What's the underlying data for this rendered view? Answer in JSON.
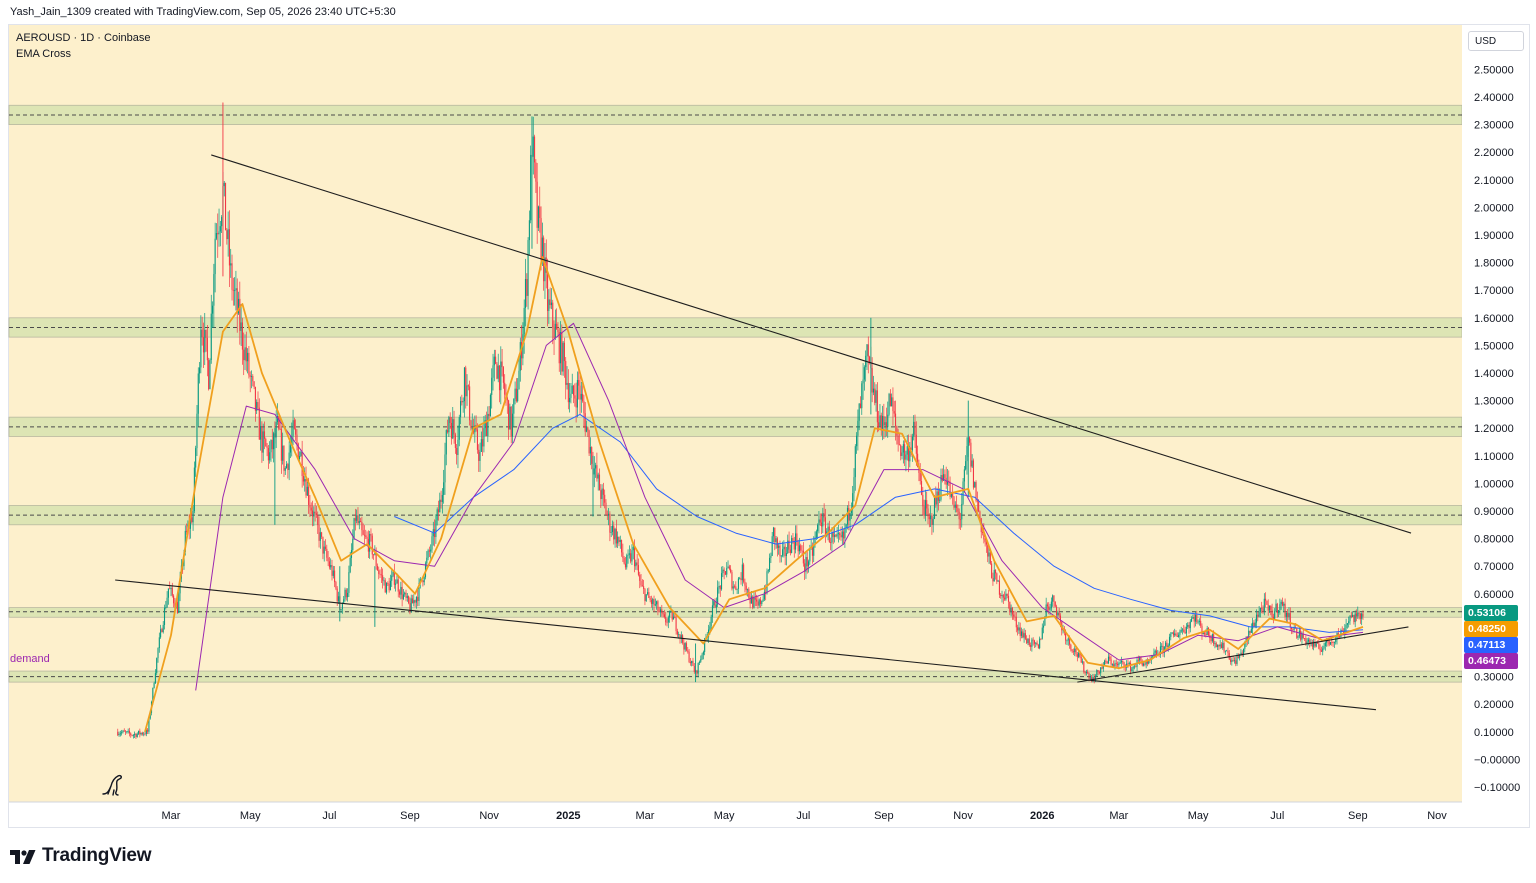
{
  "caption": "Yash_Jain_1309 created with TradingView.com, Sep 05, 2026 23:40 UTC+5:30",
  "symbol_title": "AEROUSD · 1D · Coinbase",
  "indicator": "EMA Cross",
  "currency": "USD",
  "demand_label": "demand",
  "brand": "TradingView",
  "colors": {
    "plot_bg": "#fdf0cc",
    "zone_fill": "#dde5b4",
    "up": "#089981",
    "down": "#f23645",
    "ema_fast": "#f0a01e",
    "ema_mid": "#9c27b0",
    "ema_slow": "#2962ff",
    "trendline": "#1e1e1e"
  },
  "price_tags": [
    {
      "label": "0.53106",
      "value": 0.53106,
      "color": "#089981"
    },
    {
      "label": "0.48250",
      "value": 0.4825,
      "color": "#f59d00"
    },
    {
      "label": "0.47113",
      "value": 0.47113,
      "color": "#2962ff"
    },
    {
      "label": "0.46473",
      "value": 0.46473,
      "color": "#9c27b0"
    }
  ],
  "chart_data": {
    "type": "candlestick",
    "title": "AEROUSD · 1D · Coinbase",
    "x_range": [
      "2024-01-01",
      "2026-11-20"
    ],
    "ylim": [
      -0.13,
      2.56
    ],
    "y_ticks": [
      {
        "label": "2.50000",
        "value": 2.5
      },
      {
        "label": "2.40000",
        "value": 2.4
      },
      {
        "label": "2.30000",
        "value": 2.3
      },
      {
        "label": "2.20000",
        "value": 2.2
      },
      {
        "label": "2.10000",
        "value": 2.1
      },
      {
        "label": "2.00000",
        "value": 2.0
      },
      {
        "label": "1.90000",
        "value": 1.9
      },
      {
        "label": "1.80000",
        "value": 1.8
      },
      {
        "label": "1.70000",
        "value": 1.7
      },
      {
        "label": "1.60000",
        "value": 1.6
      },
      {
        "label": "1.50000",
        "value": 1.5
      },
      {
        "label": "1.40000",
        "value": 1.4
      },
      {
        "label": "1.30000",
        "value": 1.3
      },
      {
        "label": "1.20000",
        "value": 1.2
      },
      {
        "label": "1.10000",
        "value": 1.1
      },
      {
        "label": "1.00000",
        "value": 1.0
      },
      {
        "label": "0.90000",
        "value": 0.9
      },
      {
        "label": "0.80000",
        "value": 0.8
      },
      {
        "label": "0.70000",
        "value": 0.7
      },
      {
        "label": "0.60000",
        "value": 0.6
      },
      {
        "label": "0.30000",
        "value": 0.3
      },
      {
        "label": "0.20000",
        "value": 0.2
      },
      {
        "label": "0.10000",
        "value": 0.1
      },
      {
        "label": "−0.00000",
        "value": 0.0
      },
      {
        "label": "−0.10000",
        "value": -0.1
      }
    ],
    "x_ticks": [
      {
        "label": "Mar",
        "date": "2024-03-01"
      },
      {
        "label": "May",
        "date": "2024-05-01"
      },
      {
        "label": "Jul",
        "date": "2024-07-01"
      },
      {
        "label": "Sep",
        "date": "2024-09-01"
      },
      {
        "label": "Nov",
        "date": "2024-11-01"
      },
      {
        "label": "2025",
        "date": "2025-01-01",
        "bold": true
      },
      {
        "label": "Mar",
        "date": "2025-03-01"
      },
      {
        "label": "May",
        "date": "2025-05-01"
      },
      {
        "label": "Jul",
        "date": "2025-07-01"
      },
      {
        "label": "Sep",
        "date": "2025-09-01"
      },
      {
        "label": "Nov",
        "date": "2025-11-01"
      },
      {
        "label": "2026",
        "date": "2026-01-01",
        "bold": true
      },
      {
        "label": "Mar",
        "date": "2026-03-01"
      },
      {
        "label": "May",
        "date": "2026-05-01"
      },
      {
        "label": "Jul",
        "date": "2026-07-01"
      },
      {
        "label": "Sep",
        "date": "2026-09-01"
      },
      {
        "label": "Nov",
        "date": "2026-11-01"
      }
    ],
    "zones": [
      {
        "low": 2.3,
        "high": 2.37,
        "mid": 2.335
      },
      {
        "low": 1.53,
        "high": 1.6,
        "mid": 1.565
      },
      {
        "low": 1.17,
        "high": 1.24,
        "mid": 1.205
      },
      {
        "low": 0.85,
        "high": 0.92,
        "mid": 0.885
      },
      {
        "low": 0.515,
        "high": 0.55,
        "mid": 0.535
      },
      {
        "low": 0.28,
        "high": 0.32,
        "mid": 0.3
      }
    ],
    "trendlines": [
      {
        "from": {
          "date": "2024-04-01",
          "value": 2.19
        },
        "to": {
          "date": "2026-10-12",
          "value": 0.82
        }
      },
      {
        "from": {
          "date": "2024-01-18",
          "value": 0.65
        },
        "to": {
          "date": "2026-09-15",
          "value": 0.18
        }
      },
      {
        "from": {
          "date": "2026-01-28",
          "value": 0.28
        },
        "to": {
          "date": "2026-10-10",
          "value": 0.48
        }
      }
    ],
    "price_path": [
      [
        "2024-01-20",
        0.1
      ],
      [
        "2024-02-01",
        0.09
      ],
      [
        "2024-02-12",
        0.1
      ],
      [
        "2024-02-20",
        0.4
      ],
      [
        "2024-02-28",
        0.62
      ],
      [
        "2024-03-06",
        0.55
      ],
      [
        "2024-03-12",
        0.8
      ],
      [
        "2024-03-18",
        0.9
      ],
      [
        "2024-03-24",
        1.6
      ],
      [
        "2024-03-30",
        1.4
      ],
      [
        "2024-04-04",
        1.9
      ],
      [
        "2024-04-10",
        2.05
      ],
      [
        "2024-04-16",
        1.75
      ],
      [
        "2024-04-22",
        1.6
      ],
      [
        "2024-04-28",
        1.45
      ],
      [
        "2024-05-04",
        1.3
      ],
      [
        "2024-05-10",
        1.15
      ],
      [
        "2024-05-16",
        1.1
      ],
      [
        "2024-05-22",
        1.2
      ],
      [
        "2024-05-28",
        1.05
      ],
      [
        "2024-06-03",
        1.18
      ],
      [
        "2024-06-09",
        1.1
      ],
      [
        "2024-06-15",
        0.95
      ],
      [
        "2024-06-21",
        0.85
      ],
      [
        "2024-06-27",
        0.75
      ],
      [
        "2024-07-03",
        0.68
      ],
      [
        "2024-07-09",
        0.55
      ],
      [
        "2024-07-15",
        0.62
      ],
      [
        "2024-07-21",
        0.88
      ],
      [
        "2024-07-27",
        0.8
      ],
      [
        "2024-08-02",
        0.78
      ],
      [
        "2024-08-08",
        0.68
      ],
      [
        "2024-08-14",
        0.62
      ],
      [
        "2024-08-20",
        0.66
      ],
      [
        "2024-08-26",
        0.6
      ],
      [
        "2024-09-01",
        0.55
      ],
      [
        "2024-09-07",
        0.6
      ],
      [
        "2024-09-13",
        0.7
      ],
      [
        "2024-09-19",
        0.8
      ],
      [
        "2024-09-25",
        0.95
      ],
      [
        "2024-10-01",
        1.25
      ],
      [
        "2024-10-07",
        1.15
      ],
      [
        "2024-10-13",
        1.4
      ],
      [
        "2024-10-19",
        1.2
      ],
      [
        "2024-10-25",
        1.1
      ],
      [
        "2024-10-31",
        1.25
      ],
      [
        "2024-11-06",
        1.45
      ],
      [
        "2024-11-12",
        1.35
      ],
      [
        "2024-11-18",
        1.2
      ],
      [
        "2024-11-24",
        1.4
      ],
      [
        "2024-11-30",
        1.75
      ],
      [
        "2024-12-04",
        2.25
      ],
      [
        "2024-12-08",
        1.95
      ],
      [
        "2024-12-12",
        1.85
      ],
      [
        "2024-12-16",
        1.65
      ],
      [
        "2024-12-22",
        1.55
      ],
      [
        "2024-12-28",
        1.45
      ],
      [
        "2025-01-03",
        1.3
      ],
      [
        "2025-01-09",
        1.35
      ],
      [
        "2025-01-15",
        1.2
      ],
      [
        "2025-01-21",
        1.05
      ],
      [
        "2025-01-27",
        0.95
      ],
      [
        "2025-02-02",
        0.85
      ],
      [
        "2025-02-08",
        0.8
      ],
      [
        "2025-02-14",
        0.7
      ],
      [
        "2025-02-20",
        0.75
      ],
      [
        "2025-02-26",
        0.62
      ],
      [
        "2025-03-04",
        0.58
      ],
      [
        "2025-03-10",
        0.55
      ],
      [
        "2025-03-16",
        0.5
      ],
      [
        "2025-03-22",
        0.52
      ],
      [
        "2025-03-28",
        0.45
      ],
      [
        "2025-04-03",
        0.38
      ],
      [
        "2025-04-09",
        0.31
      ],
      [
        "2025-04-15",
        0.4
      ],
      [
        "2025-04-21",
        0.52
      ],
      [
        "2025-04-27",
        0.62
      ],
      [
        "2025-05-03",
        0.7
      ],
      [
        "2025-05-09",
        0.62
      ],
      [
        "2025-05-15",
        0.68
      ],
      [
        "2025-05-21",
        0.58
      ],
      [
        "2025-05-27",
        0.55
      ],
      [
        "2025-06-02",
        0.62
      ],
      [
        "2025-06-08",
        0.82
      ],
      [
        "2025-06-14",
        0.72
      ],
      [
        "2025-06-20",
        0.78
      ],
      [
        "2025-06-26",
        0.8
      ],
      [
        "2025-07-02",
        0.7
      ],
      [
        "2025-07-08",
        0.75
      ],
      [
        "2025-07-14",
        0.88
      ],
      [
        "2025-07-20",
        0.82
      ],
      [
        "2025-07-26",
        0.78
      ],
      [
        "2025-08-01",
        0.8
      ],
      [
        "2025-08-07",
        0.95
      ],
      [
        "2025-08-13",
        1.25
      ],
      [
        "2025-08-19",
        1.45
      ],
      [
        "2025-08-25",
        1.3
      ],
      [
        "2025-08-31",
        1.2
      ],
      [
        "2025-09-06",
        1.3
      ],
      [
        "2025-09-12",
        1.15
      ],
      [
        "2025-09-18",
        1.1
      ],
      [
        "2025-09-24",
        1.18
      ],
      [
        "2025-09-30",
        0.95
      ],
      [
        "2025-10-06",
        0.85
      ],
      [
        "2025-10-12",
        0.95
      ],
      [
        "2025-10-18",
        1.05
      ],
      [
        "2025-10-24",
        0.92
      ],
      [
        "2025-10-30",
        0.88
      ],
      [
        "2025-11-05",
        1.15
      ],
      [
        "2025-11-11",
        0.95
      ],
      [
        "2025-11-17",
        0.8
      ],
      [
        "2025-11-23",
        0.68
      ],
      [
        "2025-11-29",
        0.62
      ],
      [
        "2025-12-05",
        0.58
      ],
      [
        "2025-12-11",
        0.5
      ],
      [
        "2025-12-17",
        0.45
      ],
      [
        "2025-12-23",
        0.42
      ],
      [
        "2025-12-29",
        0.4
      ],
      [
        "2026-01-04",
        0.55
      ],
      [
        "2026-01-10",
        0.58
      ],
      [
        "2026-01-16",
        0.48
      ],
      [
        "2026-01-22",
        0.42
      ],
      [
        "2026-01-28",
        0.38
      ],
      [
        "2026-02-03",
        0.32
      ],
      [
        "2026-02-09",
        0.29
      ],
      [
        "2026-02-15",
        0.33
      ],
      [
        "2026-02-21",
        0.36
      ],
      [
        "2026-02-27",
        0.34
      ],
      [
        "2026-03-05",
        0.35
      ],
      [
        "2026-03-11",
        0.33
      ],
      [
        "2026-03-17",
        0.36
      ],
      [
        "2026-03-23",
        0.34
      ],
      [
        "2026-03-29",
        0.38
      ],
      [
        "2026-04-04",
        0.4
      ],
      [
        "2026-04-10",
        0.44
      ],
      [
        "2026-04-16",
        0.46
      ],
      [
        "2026-04-22",
        0.48
      ],
      [
        "2026-04-28",
        0.52
      ],
      [
        "2026-05-04",
        0.47
      ],
      [
        "2026-05-10",
        0.45
      ],
      [
        "2026-05-16",
        0.42
      ],
      [
        "2026-05-22",
        0.4
      ],
      [
        "2026-05-28",
        0.35
      ],
      [
        "2026-06-03",
        0.38
      ],
      [
        "2026-06-09",
        0.45
      ],
      [
        "2026-06-15",
        0.52
      ],
      [
        "2026-06-21",
        0.56
      ],
      [
        "2026-06-27",
        0.52
      ],
      [
        "2026-07-03",
        0.57
      ],
      [
        "2026-07-09",
        0.52
      ],
      [
        "2026-07-15",
        0.46
      ],
      [
        "2026-07-21",
        0.44
      ],
      [
        "2026-07-27",
        0.42
      ],
      [
        "2026-08-02",
        0.4
      ],
      [
        "2026-08-08",
        0.42
      ],
      [
        "2026-08-14",
        0.44
      ],
      [
        "2026-08-20",
        0.46
      ],
      [
        "2026-08-26",
        0.52
      ],
      [
        "2026-09-01",
        0.51
      ],
      [
        "2026-09-05",
        0.53
      ]
    ],
    "ema_fast_path": [
      [
        "2024-02-10",
        0.1
      ],
      [
        "2024-03-01",
        0.45
      ],
      [
        "2024-03-20",
        1.0
      ],
      [
        "2024-04-10",
        1.55
      ],
      [
        "2024-04-25",
        1.65
      ],
      [
        "2024-05-10",
        1.4
      ],
      [
        "2024-06-01",
        1.15
      ],
      [
        "2024-06-20",
        0.95
      ],
      [
        "2024-07-10",
        0.72
      ],
      [
        "2024-07-30",
        0.78
      ],
      [
        "2024-08-20",
        0.68
      ],
      [
        "2024-09-05",
        0.6
      ],
      [
        "2024-09-25",
        0.8
      ],
      [
        "2024-10-20",
        1.2
      ],
      [
        "2024-11-10",
        1.25
      ],
      [
        "2024-11-30",
        1.55
      ],
      [
        "2024-12-12",
        1.82
      ],
      [
        "2025-01-01",
        1.55
      ],
      [
        "2025-01-25",
        1.15
      ],
      [
        "2025-02-20",
        0.78
      ],
      [
        "2025-03-20",
        0.55
      ],
      [
        "2025-04-15",
        0.42
      ],
      [
        "2025-05-05",
        0.58
      ],
      [
        "2025-06-01",
        0.62
      ],
      [
        "2025-06-25",
        0.72
      ],
      [
        "2025-07-20",
        0.82
      ],
      [
        "2025-08-10",
        0.92
      ],
      [
        "2025-08-25",
        1.2
      ],
      [
        "2025-09-15",
        1.18
      ],
      [
        "2025-10-10",
        0.95
      ],
      [
        "2025-11-05",
        0.98
      ],
      [
        "2025-11-25",
        0.72
      ],
      [
        "2025-12-20",
        0.5
      ],
      [
        "2026-01-10",
        0.52
      ],
      [
        "2026-02-05",
        0.35
      ],
      [
        "2026-03-01",
        0.33
      ],
      [
        "2026-03-25",
        0.36
      ],
      [
        "2026-04-20",
        0.44
      ],
      [
        "2026-05-10",
        0.47
      ],
      [
        "2026-06-01",
        0.4
      ],
      [
        "2026-06-25",
        0.51
      ],
      [
        "2026-07-15",
        0.49
      ],
      [
        "2026-08-05",
        0.43
      ],
      [
        "2026-09-05",
        0.48
      ]
    ],
    "ema_mid_path": [
      [
        "2024-03-20",
        0.25
      ],
      [
        "2024-04-10",
        0.95
      ],
      [
        "2024-04-28",
        1.28
      ],
      [
        "2024-05-20",
        1.25
      ],
      [
        "2024-06-20",
        1.05
      ],
      [
        "2024-07-20",
        0.8
      ],
      [
        "2024-08-20",
        0.72
      ],
      [
        "2024-09-20",
        0.7
      ],
      [
        "2024-10-20",
        0.95
      ],
      [
        "2024-11-20",
        1.15
      ],
      [
        "2024-12-15",
        1.5
      ],
      [
        "2025-01-05",
        1.58
      ],
      [
        "2025-02-01",
        1.3
      ],
      [
        "2025-03-01",
        0.95
      ],
      [
        "2025-04-01",
        0.65
      ],
      [
        "2025-05-01",
        0.55
      ],
      [
        "2025-06-01",
        0.6
      ],
      [
        "2025-07-01",
        0.68
      ],
      [
        "2025-08-01",
        0.78
      ],
      [
        "2025-09-01",
        1.05
      ],
      [
        "2025-10-01",
        1.05
      ],
      [
        "2025-11-01",
        0.98
      ],
      [
        "2025-12-01",
        0.72
      ],
      [
        "2026-01-01",
        0.55
      ],
      [
        "2026-02-01",
        0.45
      ],
      [
        "2026-03-01",
        0.36
      ],
      [
        "2026-04-01",
        0.38
      ],
      [
        "2026-05-01",
        0.45
      ],
      [
        "2026-06-01",
        0.43
      ],
      [
        "2026-07-01",
        0.48
      ],
      [
        "2026-08-01",
        0.44
      ],
      [
        "2026-09-05",
        0.46
      ]
    ],
    "ema_slow_path": [
      [
        "2024-08-20",
        0.88
      ],
      [
        "2024-09-20",
        0.82
      ],
      [
        "2024-10-20",
        0.95
      ],
      [
        "2024-11-20",
        1.05
      ],
      [
        "2024-12-20",
        1.2
      ],
      [
        "2025-01-10",
        1.25
      ],
      [
        "2025-02-10",
        1.15
      ],
      [
        "2025-03-10",
        0.98
      ],
      [
        "2025-04-10",
        0.88
      ],
      [
        "2025-05-10",
        0.82
      ],
      [
        "2025-06-10",
        0.78
      ],
      [
        "2025-07-10",
        0.8
      ],
      [
        "2025-08-10",
        0.85
      ],
      [
        "2025-09-10",
        0.95
      ],
      [
        "2025-10-10",
        0.98
      ],
      [
        "2025-11-10",
        0.95
      ],
      [
        "2025-12-10",
        0.82
      ],
      [
        "2026-01-10",
        0.7
      ],
      [
        "2026-02-10",
        0.62
      ],
      [
        "2026-03-10",
        0.58
      ],
      [
        "2026-04-10",
        0.54
      ],
      [
        "2026-05-10",
        0.52
      ],
      [
        "2026-06-10",
        0.48
      ],
      [
        "2026-07-10",
        0.48
      ],
      [
        "2026-08-10",
        0.46
      ],
      [
        "2026-09-05",
        0.47
      ]
    ]
  }
}
